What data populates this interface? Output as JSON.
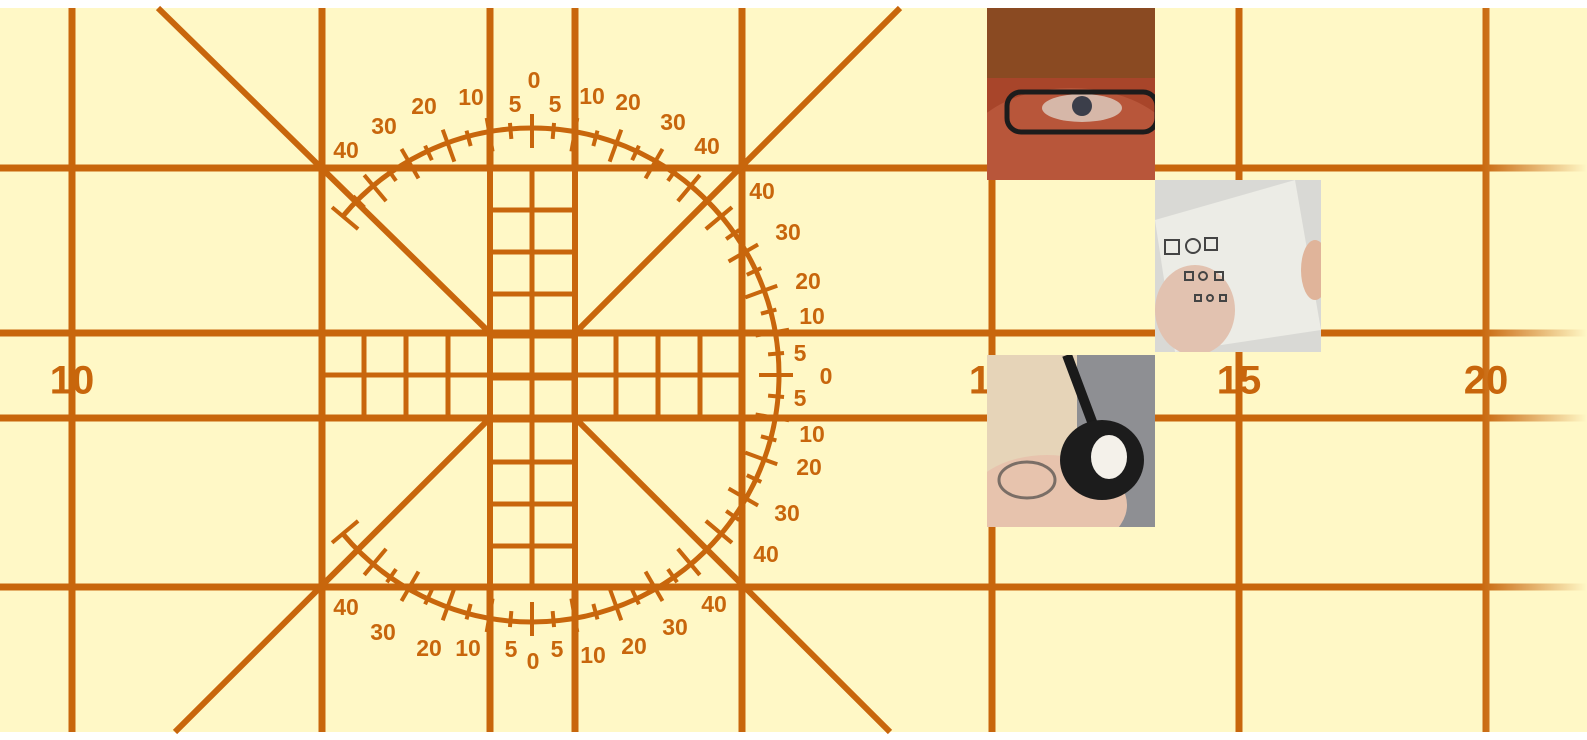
{
  "scale_labels": [
    "10",
    "1",
    "15",
    "20"
  ],
  "protractor": {
    "top": [
      "40",
      "30",
      "20",
      "10",
      "5",
      "0",
      "5",
      "10",
      "20",
      "30",
      "40"
    ],
    "right": [
      "40",
      "30",
      "20",
      "10",
      "5",
      "0",
      "5",
      "10",
      "20",
      "30",
      "40"
    ],
    "bottom": [
      "40",
      "30",
      "20",
      "10",
      "5",
      "0",
      "5",
      "10",
      "20",
      "30",
      "40"
    ]
  }
}
